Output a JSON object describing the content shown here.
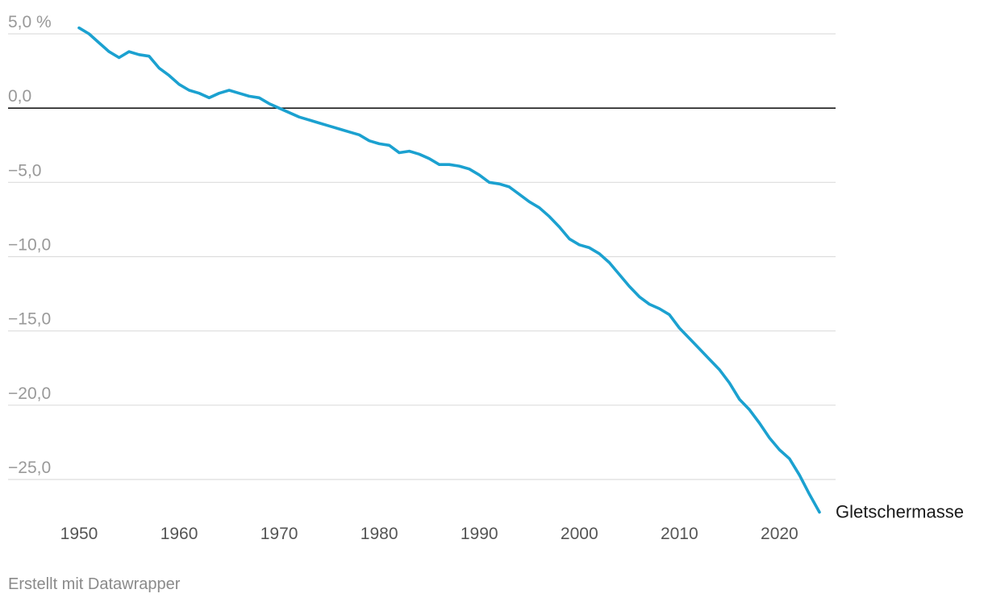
{
  "chart_data": {
    "type": "line",
    "title": "",
    "xlabel": "",
    "ylabel": "",
    "xlim": [
      1950,
      2024
    ],
    "ylim": [
      -27.5,
      5.0
    ],
    "y_ticks": [
      5,
      0,
      -5,
      -10,
      -15,
      -20,
      -25
    ],
    "y_tick_labels": [
      "5,0 %",
      "0,0",
      "−5,0",
      "−10,0",
      "−15,0",
      "−20,0",
      "−25,0"
    ],
    "x_ticks": [
      1950,
      1960,
      1970,
      1980,
      1990,
      2000,
      2010,
      2020
    ],
    "x_tick_labels": [
      "1950",
      "1960",
      "1970",
      "1980",
      "1990",
      "2000",
      "2010",
      "2020"
    ],
    "grid": true,
    "zero_line": true,
    "line_color": "#1ba1d0",
    "series": [
      {
        "name": "Gletschermasse",
        "x": [
          1950,
          1951,
          1952,
          1953,
          1954,
          1955,
          1956,
          1957,
          1958,
          1959,
          1960,
          1961,
          1962,
          1963,
          1964,
          1965,
          1966,
          1967,
          1968,
          1969,
          1970,
          1971,
          1972,
          1973,
          1974,
          1975,
          1976,
          1977,
          1978,
          1979,
          1980,
          1981,
          1982,
          1983,
          1984,
          1985,
          1986,
          1987,
          1988,
          1989,
          1990,
          1991,
          1992,
          1993,
          1994,
          1995,
          1996,
          1997,
          1998,
          1999,
          2000,
          2001,
          2002,
          2003,
          2004,
          2005,
          2006,
          2007,
          2008,
          2009,
          2010,
          2011,
          2012,
          2013,
          2014,
          2015,
          2016,
          2017,
          2018,
          2019,
          2020,
          2021,
          2022,
          2023,
          2024
        ],
        "values": [
          5.4,
          5.0,
          4.4,
          3.8,
          3.4,
          3.8,
          3.6,
          3.5,
          2.7,
          2.2,
          1.6,
          1.2,
          1.0,
          0.7,
          1.0,
          1.2,
          1.0,
          0.8,
          0.7,
          0.3,
          0.0,
          -0.3,
          -0.6,
          -0.8,
          -1.0,
          -1.2,
          -1.4,
          -1.6,
          -1.8,
          -2.2,
          -2.4,
          -2.5,
          -3.0,
          -2.9,
          -3.1,
          -3.4,
          -3.8,
          -3.8,
          -3.9,
          -4.1,
          -4.5,
          -5.0,
          -5.1,
          -5.3,
          -5.8,
          -6.3,
          -6.7,
          -7.3,
          -8.0,
          -8.8,
          -9.2,
          -9.4,
          -9.8,
          -10.4,
          -11.2,
          -12.0,
          -12.7,
          -13.2,
          -13.5,
          -13.9,
          -14.8,
          -15.5,
          -16.2,
          -16.9,
          -17.6,
          -18.5,
          -19.6,
          -20.3,
          -21.2,
          -22.2,
          -23.0,
          -23.6,
          -24.7,
          -26.0,
          -27.2
        ]
      }
    ]
  },
  "footer": {
    "credit": "Erstellt mit Datawrapper"
  }
}
